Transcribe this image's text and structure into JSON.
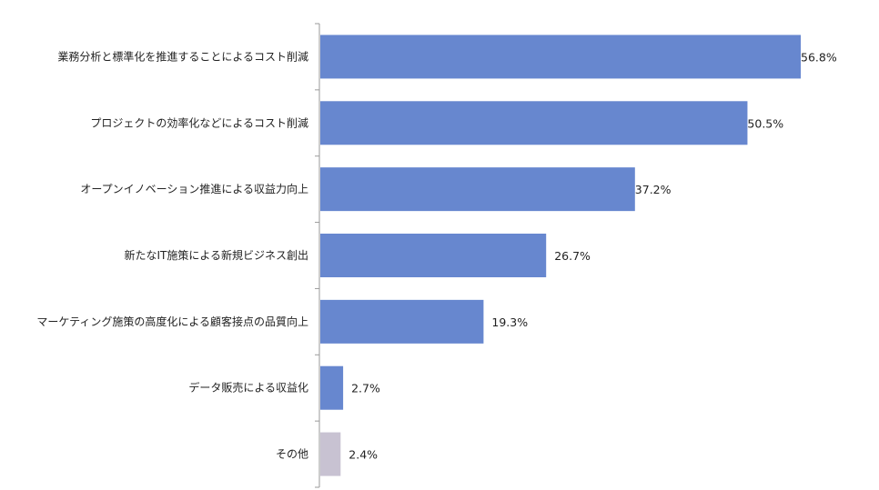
{
  "chart_data": {
    "type": "bar",
    "orientation": "horizontal",
    "categories": [
      "業務分析と標準化を推進することによるコスト削減",
      "プロジェクトの効率化などによるコスト削減",
      "オープンイノベーション推進による収益力向上",
      "新たなIT施策による新規ビジネス創出",
      "マーケティング施策の高度化による顧客接点の品質向上",
      "データ販売による収益化",
      "その他"
    ],
    "values": [
      56.8,
      50.5,
      37.2,
      26.7,
      19.3,
      2.7,
      2.4
    ],
    "value_labels": [
      "56.8%",
      "50.5%",
      "37.2%",
      "26.7%",
      "19.3%",
      "2.7%",
      "2.4%"
    ],
    "unit": "%",
    "xlim": [
      0,
      60
    ],
    "colors": [
      "#6787cf",
      "#6787cf",
      "#6787cf",
      "#6787cf",
      "#6787cf",
      "#6787cf",
      "#c8c2d2"
    ],
    "grid": false,
    "legend": "none"
  }
}
